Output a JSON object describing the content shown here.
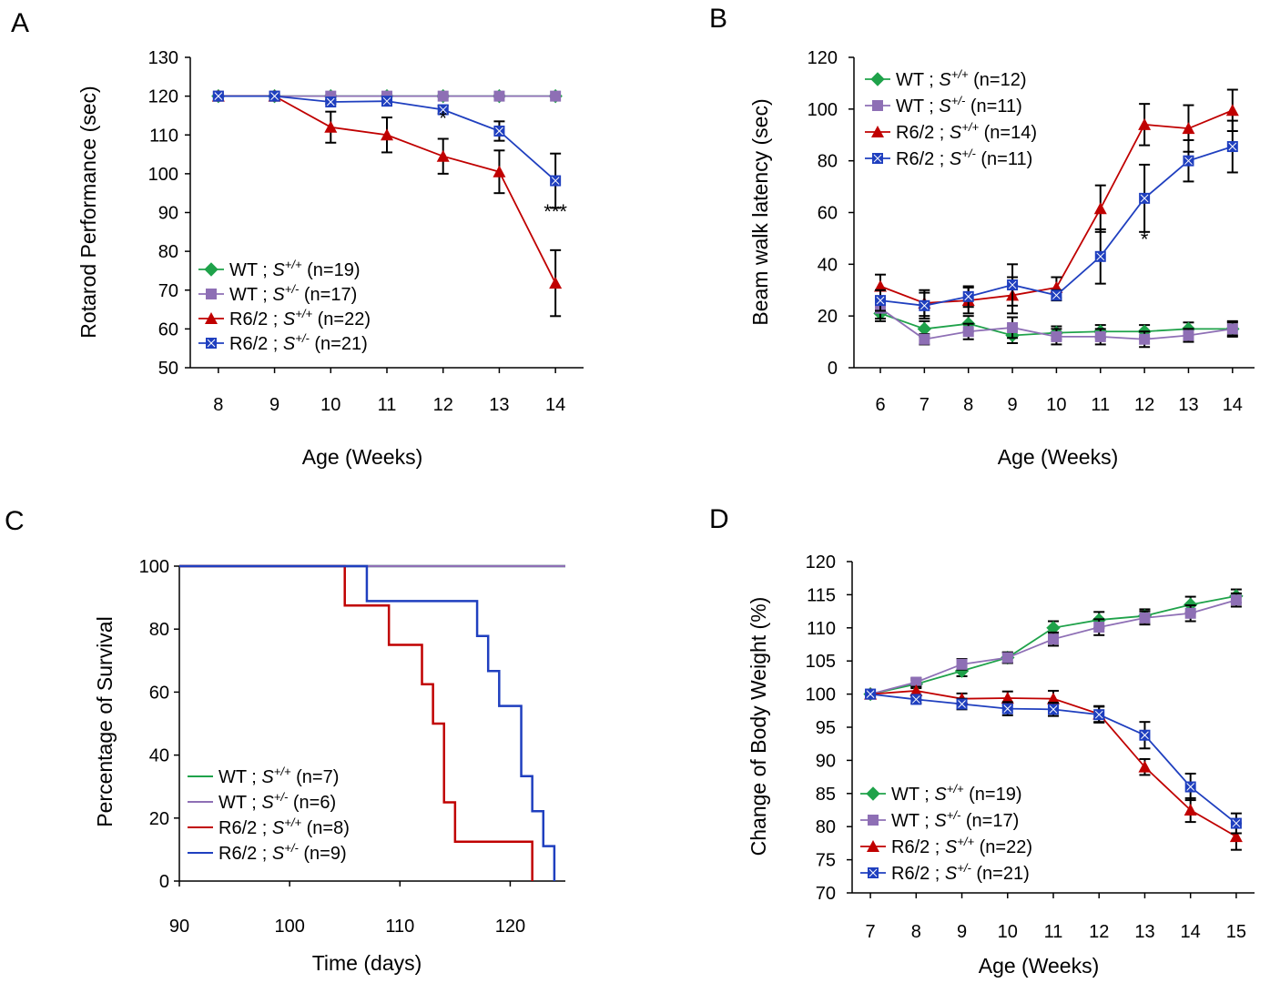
{
  "chart_data": [
    {
      "panel": "A",
      "type": "line",
      "title": "",
      "xlabel": "Age (Weeks)",
      "ylabel": "Rotarod Performance (sec)",
      "xlim": [
        7.5,
        14.5
      ],
      "ylim": [
        50,
        130
      ],
      "xticks": [
        8,
        9,
        10,
        11,
        12,
        13,
        14
      ],
      "yticks": [
        50,
        60,
        70,
        80,
        90,
        100,
        110,
        120,
        130
      ],
      "legend_position": "bottom-left",
      "series": [
        {
          "name": "WT ; S+/+ (n=19)",
          "legend_name": "WT",
          "legend_sup": "+/+",
          "legend_n": "(n=19)",
          "color": "#1fa24a",
          "marker": "diamond",
          "x": [
            8,
            9,
            10,
            11,
            12,
            13,
            14
          ],
          "values": [
            120,
            120,
            120,
            120,
            120,
            120,
            120
          ],
          "errors": [
            0,
            0,
            0,
            0,
            0,
            0,
            0
          ]
        },
        {
          "name": "WT ; S+/- (n=17)",
          "legend_name": "WT",
          "legend_sup": "+/-",
          "legend_n": "(n=17)",
          "color": "#8e6fb5",
          "marker": "square",
          "x": [
            8,
            9,
            10,
            11,
            12,
            13,
            14
          ],
          "values": [
            120,
            120,
            120,
            120,
            120,
            120,
            120
          ],
          "errors": [
            0,
            0,
            0,
            0,
            0,
            0,
            0
          ]
        },
        {
          "name": "R6/2 ; S+/+ (n=22)",
          "legend_name": "R6/2",
          "legend_sup": "+/+",
          "legend_n": "(n=22)",
          "color": "#c00000",
          "marker": "triangle",
          "x": [
            8,
            9,
            10,
            11,
            12,
            13,
            14
          ],
          "values": [
            120,
            120,
            112,
            110,
            104.5,
            100.5,
            71.8
          ],
          "errors": [
            0,
            0,
            4,
            4.5,
            4.5,
            5.5,
            8.5
          ]
        },
        {
          "name": "R6/2 ; S+/- (n=21)",
          "legend_name": "R6/2",
          "legend_sup": "+/-",
          "legend_n": "(n=21)",
          "color": "#1f3fbf",
          "marker": "square-x",
          "x": [
            8,
            9,
            10,
            11,
            12,
            13,
            14
          ],
          "values": [
            120,
            120,
            118.5,
            118.7,
            116.5,
            111,
            98.2
          ],
          "errors": [
            0,
            0,
            0.5,
            0.5,
            1,
            2.5,
            7
          ]
        }
      ],
      "annotations": [
        {
          "text": "*",
          "x": 12,
          "y": 112.5
        },
        {
          "text": "***",
          "x": 14,
          "y": 88.5
        }
      ]
    },
    {
      "panel": "B",
      "type": "line",
      "title": "",
      "xlabel": "Age (Weeks)",
      "ylabel": "Beam walk latency (sec)",
      "xlim": [
        5.4,
        14.5
      ],
      "ylim": [
        0,
        120
      ],
      "xticks": [
        6,
        7,
        8,
        9,
        10,
        11,
        12,
        13,
        14
      ],
      "yticks": [
        0,
        20,
        40,
        60,
        80,
        100,
        120
      ],
      "legend_position": "top-left",
      "series": [
        {
          "name": "WT ; S+/+ (n=12)",
          "legend_name": "WT",
          "legend_sup": "+/+",
          "legend_n": "(n=12)",
          "color": "#1fa24a",
          "marker": "diamond",
          "x": [
            6,
            7,
            8,
            9,
            10,
            11,
            12,
            13,
            14
          ],
          "values": [
            21,
            15,
            17,
            12.5,
            13.5,
            14,
            14,
            15,
            15
          ],
          "errors": [
            3,
            3,
            3,
            3,
            2.5,
            2.5,
            2.5,
            2.5,
            2.5
          ]
        },
        {
          "name": "WT ; S+/- (n=11)",
          "legend_name": "WT",
          "legend_sup": "+/-",
          "legend_n": "(n=11)",
          "color": "#8e6fb5",
          "marker": "square",
          "x": [
            6,
            7,
            8,
            9,
            10,
            11,
            12,
            13,
            14
          ],
          "values": [
            23,
            11,
            14,
            15.5,
            12,
            12,
            11,
            12.5,
            15
          ],
          "errors": [
            4,
            2,
            3,
            4,
            3,
            3,
            3,
            2.5,
            3
          ]
        },
        {
          "name": "R6/2 ; S+/+ (n=14)",
          "legend_name": "R6/2",
          "legend_sup": "+/+",
          "legend_n": "(n=14)",
          "color": "#c00000",
          "marker": "triangle",
          "x": [
            6,
            7,
            8,
            9,
            10,
            11,
            12,
            13,
            14
          ],
          "values": [
            31.5,
            25,
            26,
            28,
            31,
            61.5,
            94,
            92.5,
            99.5
          ],
          "errors": [
            4.5,
            5,
            5,
            7,
            4,
            9,
            8,
            9,
            8
          ]
        },
        {
          "name": "R6/2 ; S+/- (n=11)",
          "legend_name": "R6/2",
          "legend_sup": "+/-",
          "legend_n": "(n=11)",
          "color": "#1f3fbf",
          "marker": "square-x",
          "x": [
            6,
            7,
            8,
            9,
            10,
            11,
            12,
            13,
            14
          ],
          "values": [
            26,
            24,
            27.5,
            32,
            28,
            43,
            65.5,
            80,
            85.5
          ],
          "errors": [
            4,
            5,
            4,
            8,
            2,
            10.5,
            13,
            8,
            10
          ]
        }
      ],
      "annotations": [
        {
          "text": "*",
          "x": 12,
          "y": 47
        }
      ]
    },
    {
      "panel": "C",
      "type": "line",
      "title": "",
      "xlabel": "Time (days)",
      "ylabel": "Percentage of Survival",
      "xlim": [
        90,
        125
      ],
      "ylim": [
        0,
        100
      ],
      "xticks": [
        90,
        100,
        110,
        120
      ],
      "yticks": [
        0,
        20,
        40,
        60,
        80,
        100
      ],
      "legend_position": "bottom-left",
      "series": [
        {
          "name": "WT ; S+/+ (n=7)",
          "legend_name": "WT",
          "legend_sup": "+/+",
          "legend_n": "(n=7)",
          "color": "#1fa24a",
          "x": [
            90,
            125
          ],
          "values": [
            100,
            100
          ]
        },
        {
          "name": "WT ; S+/- (n=6)",
          "legend_name": "WT",
          "legend_sup": "+/-",
          "legend_n": "(n=6)",
          "color": "#8e6fb5",
          "x": [
            90,
            125
          ],
          "values": [
            100,
            100
          ]
        },
        {
          "name": "R6/2 ; S+/+ (n=8)",
          "legend_name": "R6/2",
          "legend_sup": "+/+",
          "legend_n": "(n=8)",
          "color": "#c00000",
          "x": [
            90,
            105,
            109,
            112,
            113,
            114,
            115,
            122
          ],
          "values": [
            100,
            87.5,
            75,
            62.5,
            50,
            25,
            12.5,
            0
          ]
        },
        {
          "name": "R6/2 ; S+/- (n=9)",
          "legend_name": "R6/2",
          "legend_sup": "+/-",
          "legend_n": "(n=9)",
          "color": "#1f3fbf",
          "x": [
            90,
            107,
            117,
            118,
            119,
            121,
            122,
            123,
            124
          ],
          "values": [
            100,
            88.9,
            77.8,
            66.7,
            55.6,
            33.3,
            22.2,
            11.1,
            0
          ]
        }
      ]
    },
    {
      "panel": "D",
      "type": "line",
      "title": "",
      "xlabel": "Age (Weeks)",
      "ylabel": "Change of  Body Weight (%)",
      "xlim": [
        6.6,
        15.4
      ],
      "ylim": [
        70,
        120
      ],
      "xticks": [
        7,
        8,
        9,
        10,
        11,
        12,
        13,
        14,
        15
      ],
      "yticks": [
        70,
        75,
        80,
        85,
        90,
        95,
        100,
        105,
        110,
        115,
        120
      ],
      "legend_position": "bottom-left",
      "series": [
        {
          "name": "WT ; S+/+ (n=19)",
          "legend_name": "WT",
          "legend_sup": "+/+",
          "legend_n": "(n=19)",
          "color": "#1fa24a",
          "marker": "diamond",
          "x": [
            7,
            8,
            9,
            10,
            11,
            12,
            13,
            14,
            15
          ],
          "values": [
            100,
            101.5,
            103.5,
            105.5,
            110,
            111.2,
            111.8,
            113.5,
            114.8
          ],
          "errors": [
            0,
            0.6,
            0.8,
            0.8,
            1,
            1.2,
            1,
            1.2,
            1
          ]
        },
        {
          "name": "WT ; S+/- (n=17)",
          "legend_name": "WT",
          "legend_sup": "+/-",
          "legend_n": "(n=17)",
          "color": "#8e6fb5",
          "marker": "square",
          "x": [
            7,
            8,
            9,
            10,
            11,
            12,
            13,
            14,
            15
          ],
          "values": [
            100,
            101.8,
            104.5,
            105.5,
            108.3,
            110.1,
            111.5,
            112.2,
            114.2
          ],
          "errors": [
            0,
            0.6,
            0.8,
            0.8,
            1,
            1.2,
            1,
            1.2,
            1
          ]
        },
        {
          "name": "R6/2 ; S+/+ (n=22)",
          "legend_name": "R6/2",
          "legend_sup": "+/+",
          "legend_n": "(n=22)",
          "color": "#c00000",
          "marker": "triangle",
          "x": [
            7,
            8,
            9,
            10,
            11,
            12,
            13,
            14,
            15
          ],
          "values": [
            100,
            100.5,
            99.3,
            99.4,
            99.3,
            97,
            89,
            82.5,
            78.5
          ],
          "errors": [
            0,
            0.6,
            0.8,
            1,
            1.2,
            1.2,
            1.2,
            1.8,
            2
          ]
        },
        {
          "name": "R6/2 ; S+/- (n=21)",
          "legend_name": "R6/2",
          "legend_sup": "+/-",
          "legend_n": "(n=21)",
          "color": "#1f3fbf",
          "marker": "square-x",
          "x": [
            7,
            8,
            9,
            10,
            11,
            12,
            13,
            14,
            15
          ],
          "values": [
            100,
            99.2,
            98.5,
            97.8,
            97.7,
            96.9,
            93.8,
            86,
            80.5
          ],
          "errors": [
            0,
            0.6,
            0.8,
            1,
            1,
            1.2,
            2,
            2,
            1.5
          ]
        }
      ]
    }
  ]
}
